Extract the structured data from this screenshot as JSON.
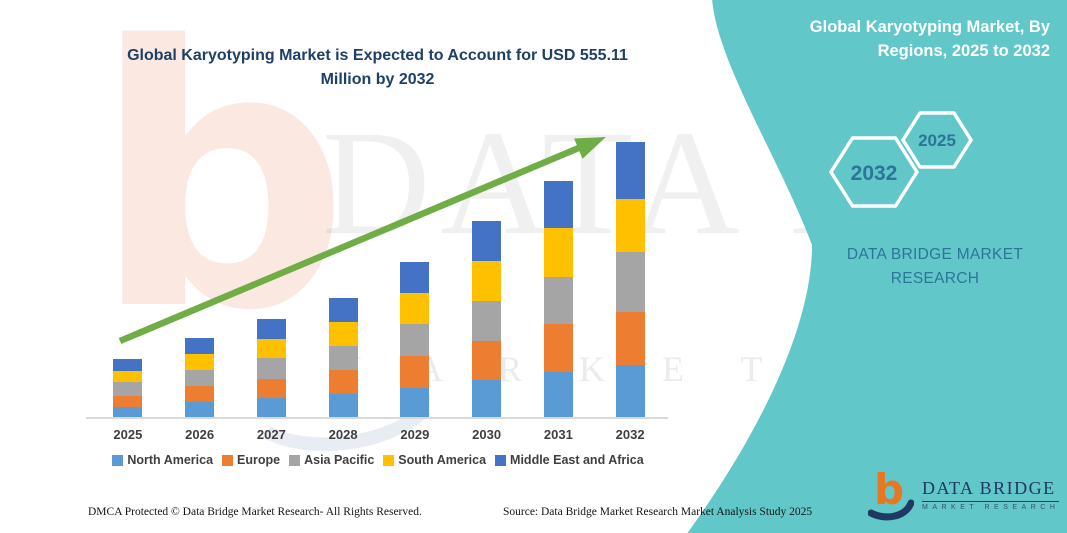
{
  "header": {
    "title": "Global Karyotyping Market is Expected to Account for USD 555.11 Million by 2032"
  },
  "side_panel": {
    "title": "Global Karyotyping Market, By Regions, 2025 to 2032",
    "hexagons": [
      "2032",
      "2025"
    ],
    "brand_line1": "DATA BRIDGE MARKET",
    "brand_line2": "RESEARCH",
    "accent_color": "#5BC5C7",
    "hex_label_color": "#2C7599"
  },
  "watermark": {
    "line1": "DATA BRIDGE",
    "line2": "M A R K E T   R E S E A R C H",
    "logo_letter": "b"
  },
  "logo": {
    "name": "DATA BRIDGE",
    "subtitle": "MARKET RESEARCH"
  },
  "footer": {
    "dmca": "DMCA Protected © Data Bridge Market Research-  All Rights Reserved.",
    "source": "Source: Data Bridge Market Research  Market Analysis Study 2025"
  },
  "chart_data": {
    "type": "bar",
    "stacked": true,
    "title": "Global Karyotyping Market is Expected to Account for USD 555.11 Million by 2032",
    "unit": "USD Million",
    "categories": [
      "2025",
      "2026",
      "2027",
      "2028",
      "2029",
      "2030",
      "2031",
      "2032"
    ],
    "series": [
      {
        "name": "North America",
        "color": "#5B9BD5",
        "values": [
          22.7,
          31.5,
          39.5,
          47.5,
          60.3,
          77.0,
          92.5,
          107.2
        ]
      },
      {
        "name": "Europe",
        "color": "#ED7D31",
        "values": [
          20.7,
          32.2,
          39.0,
          48.5,
          65.0,
          78.4,
          96.5,
          107.2
        ]
      },
      {
        "name": "Asia Pacific",
        "color": "#A5A5A5",
        "values": [
          28.2,
          33.5,
          41.5,
          49.0,
          64.3,
          80.4,
          94.5,
          119.2
        ]
      },
      {
        "name": "South America",
        "color": "#FFC000",
        "values": [
          23.5,
          31.9,
          39.6,
          48.0,
          63.0,
          80.4,
          98.5,
          108.6
        ]
      },
      {
        "name": "Middle East and Africa",
        "color": "#4472C4",
        "values": [
          23.5,
          31.8,
          39.5,
          48.3,
          62.3,
          80.6,
          95.1,
          112.9
        ]
      }
    ],
    "totals_estimated": [
      118.6,
      160.9,
      199.1,
      241.3,
      314.9,
      396.8,
      477.1,
      555.11
    ],
    "highlight_value": "USD 555.11 Million by 2032",
    "ylim": [
      0,
      580
    ],
    "grid": false,
    "y_axis_visible": false,
    "legend_position": "bottom",
    "trend_arrow": {
      "show": true,
      "color": "#70AD47"
    }
  }
}
